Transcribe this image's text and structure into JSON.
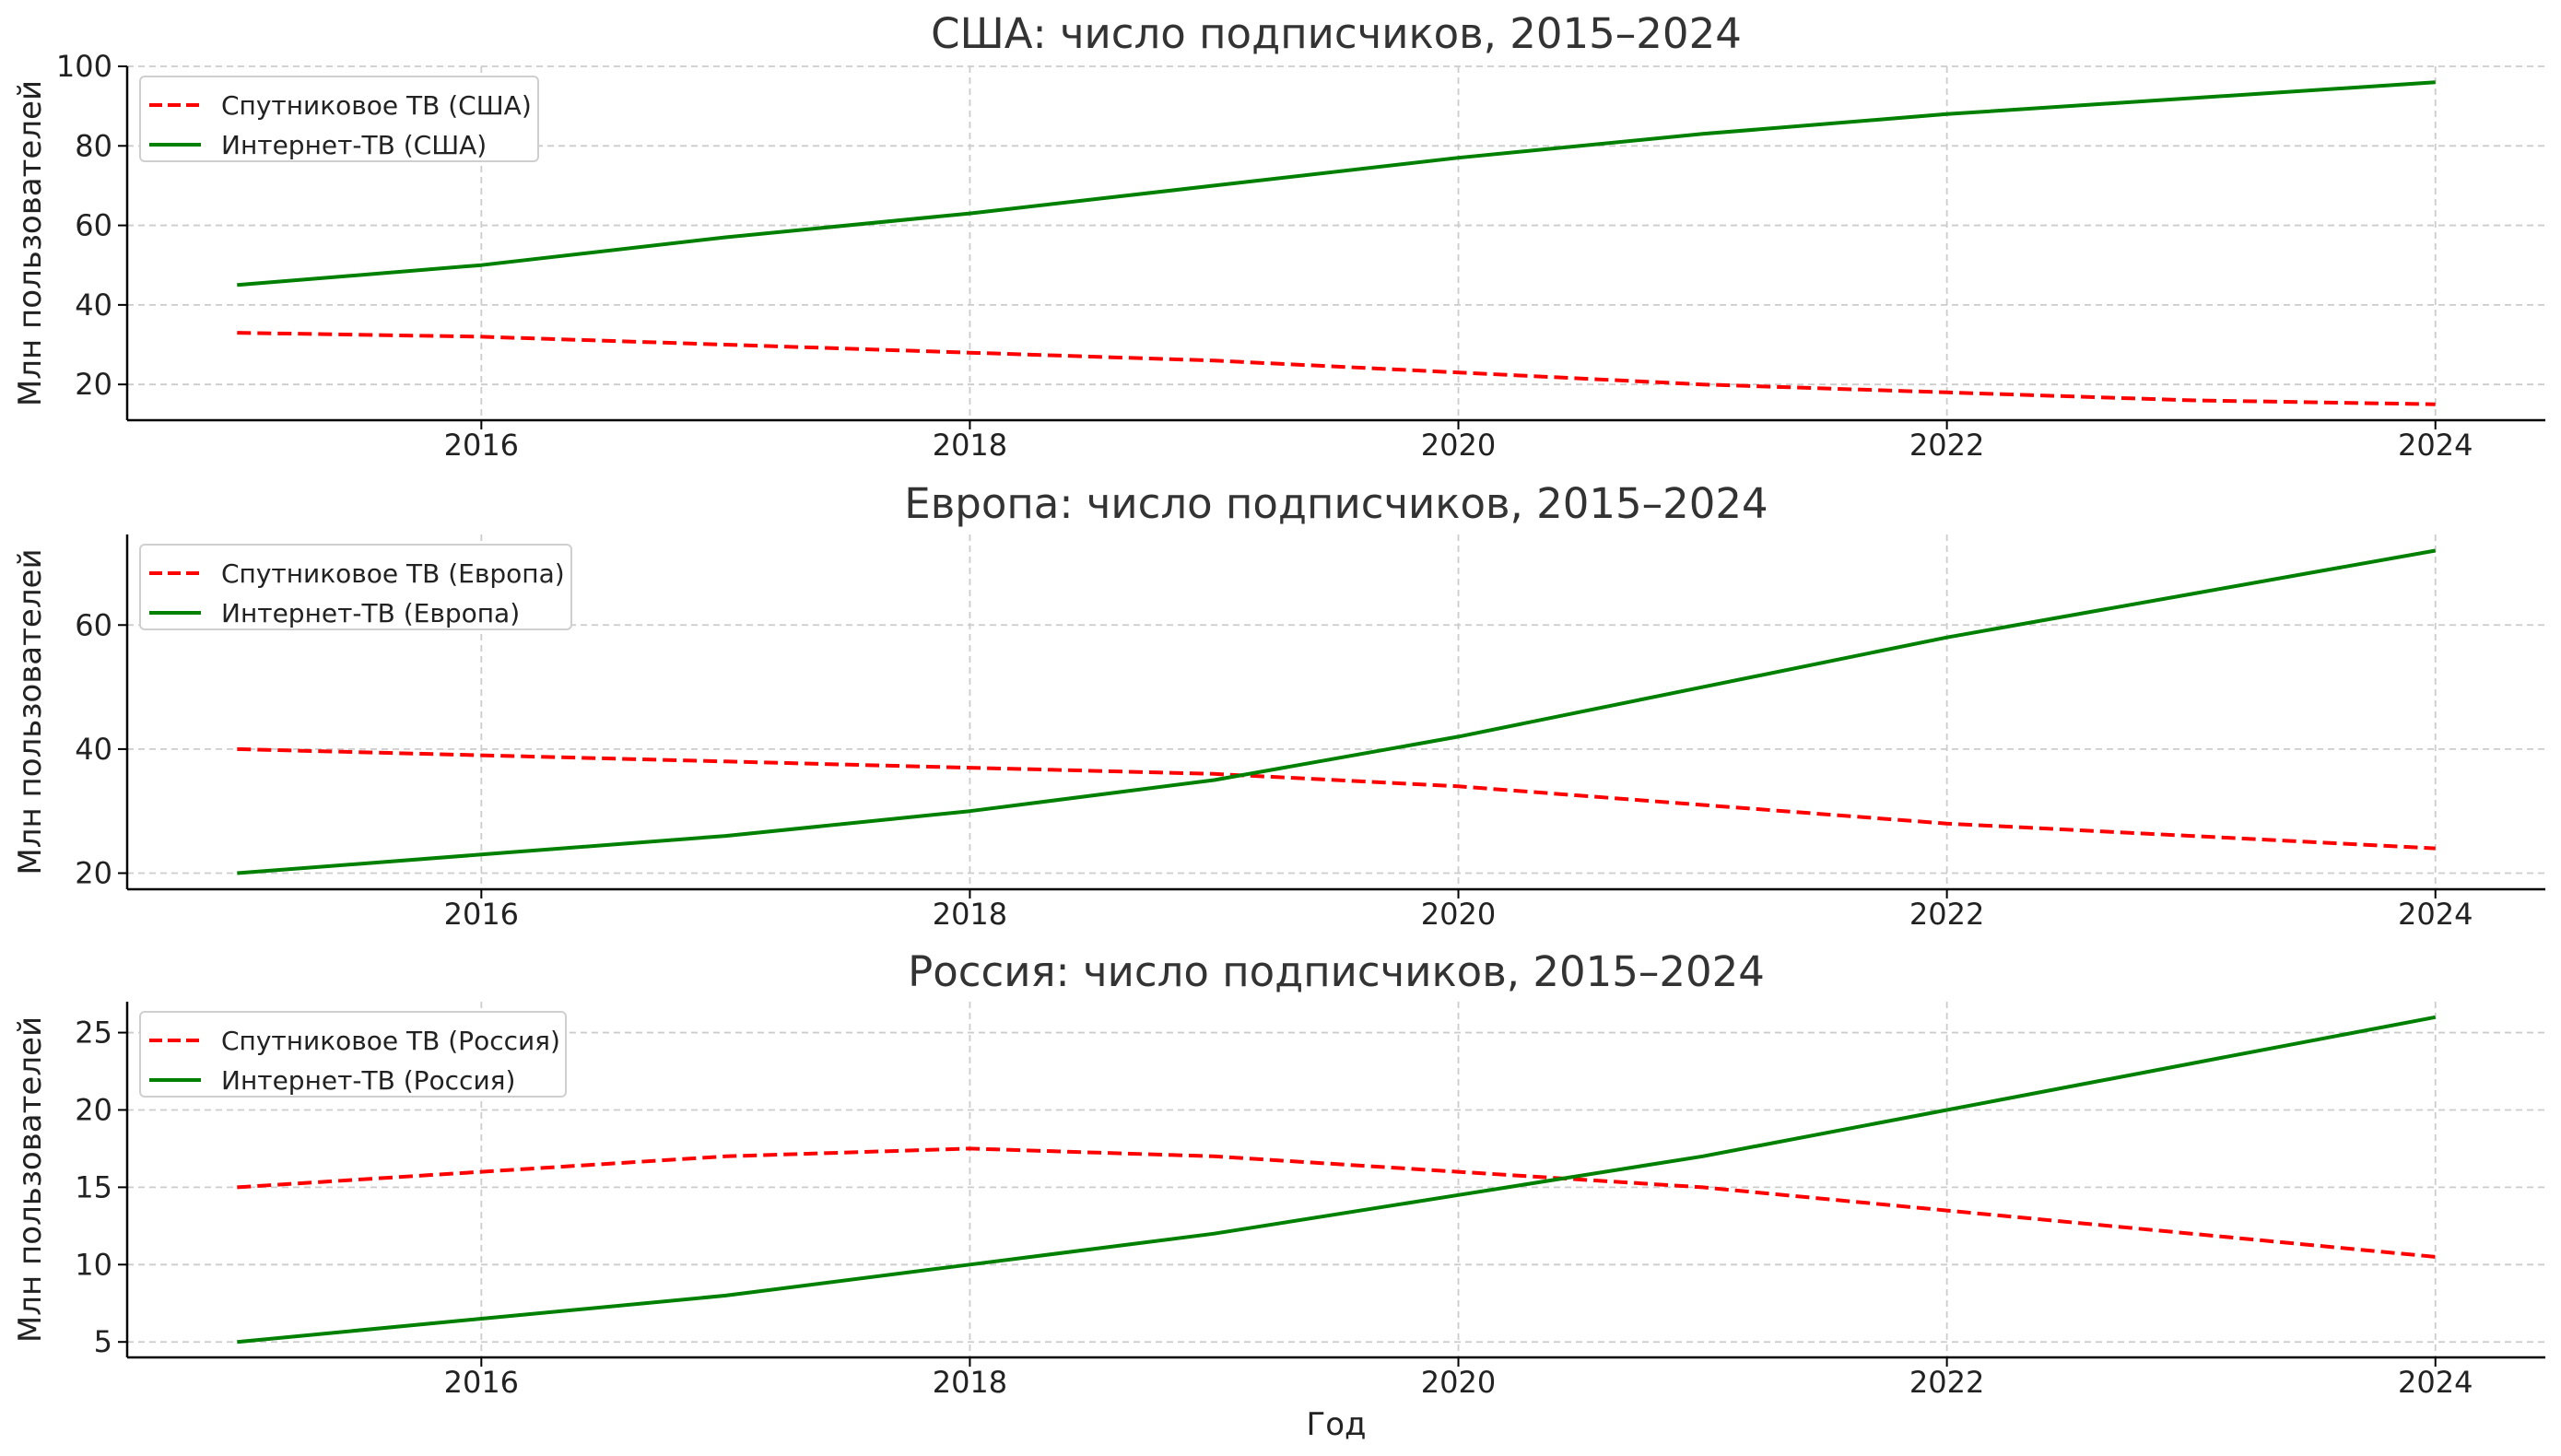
{
  "chart_data": [
    {
      "type": "line",
      "title": "США: число подписчиков, 2015–2024",
      "ylabel": "Млн пользователей",
      "xlabel": "",
      "x": [
        2015,
        2016,
        2017,
        2018,
        2019,
        2020,
        2021,
        2022,
        2023,
        2024
      ],
      "xlim": [
        2014.55,
        2024.45
      ],
      "xticks": [
        2016,
        2018,
        2020,
        2022,
        2024
      ],
      "ylim": [
        11,
        100
      ],
      "yticks": [
        20,
        40,
        60,
        80,
        100
      ],
      "grid": true,
      "legend": "upper left",
      "series": [
        {
          "name": "Спутниковое ТВ (США)",
          "color": "#ff0000",
          "style": "dashed",
          "values": [
            33,
            32,
            30,
            28,
            26,
            23,
            20,
            18,
            16,
            15
          ]
        },
        {
          "name": "Интернет-ТВ (США)",
          "color": "#008000",
          "style": "solid",
          "values": [
            45,
            50,
            57,
            63,
            70,
            77,
            83,
            88,
            92,
            96
          ]
        }
      ]
    },
    {
      "type": "line",
      "title": "Европа: число подписчиков, 2015–2024",
      "ylabel": "Млн пользователей",
      "xlabel": "",
      "x": [
        2015,
        2016,
        2017,
        2018,
        2019,
        2020,
        2021,
        2022,
        2023,
        2024
      ],
      "xlim": [
        2014.55,
        2024.45
      ],
      "xticks": [
        2016,
        2018,
        2020,
        2022,
        2024
      ],
      "ylim": [
        17.4,
        74.6
      ],
      "yticks": [
        20,
        40,
        60
      ],
      "grid": true,
      "legend": "upper left",
      "series": [
        {
          "name": "Спутниковое ТВ (Европа)",
          "color": "#ff0000",
          "style": "dashed",
          "values": [
            40,
            39,
            38,
            37,
            36,
            34,
            31,
            28,
            26,
            24
          ]
        },
        {
          "name": "Интернет-ТВ (Европа)",
          "color": "#008000",
          "style": "solid",
          "values": [
            20,
            23,
            26,
            30,
            35,
            42,
            50,
            58,
            65,
            72
          ]
        }
      ]
    },
    {
      "type": "line",
      "title": "Россия: число подписчиков, 2015–2024",
      "ylabel": "Млн пользователей",
      "xlabel": "Год",
      "x": [
        2015,
        2016,
        2017,
        2018,
        2019,
        2020,
        2021,
        2022,
        2023,
        2024
      ],
      "xlim": [
        2014.55,
        2024.45
      ],
      "xticks": [
        2016,
        2018,
        2020,
        2022,
        2024
      ],
      "ylim": [
        4.0,
        27.0
      ],
      "yticks": [
        5,
        10,
        15,
        20,
        25
      ],
      "grid": true,
      "legend": "upper left",
      "series": [
        {
          "name": "Спутниковое ТВ (Россия)",
          "color": "#ff0000",
          "style": "dashed",
          "values": [
            15,
            16,
            17,
            17.5,
            17,
            16,
            15,
            13.5,
            12,
            10.5
          ]
        },
        {
          "name": "Интернет-ТВ (Россия)",
          "color": "#008000",
          "style": "solid",
          "values": [
            5,
            6.5,
            8,
            10,
            12,
            14.5,
            17,
            20,
            23,
            26
          ]
        }
      ]
    }
  ]
}
